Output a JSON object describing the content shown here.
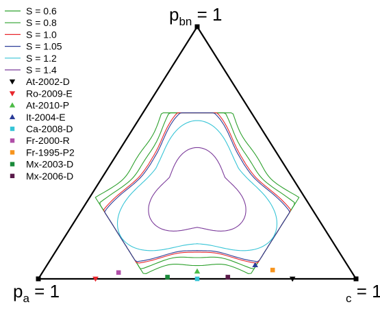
{
  "chart_data": {
    "type": "ternary",
    "vertex_labels": {
      "top": {
        "main": "p",
        "sub": "bn",
        "rest": " = 1"
      },
      "left": {
        "main": "p",
        "sub": "a",
        "rest": " = 1"
      },
      "right": {
        "main": "",
        "sub": "c",
        "rest": " = 1"
      }
    },
    "contours": [
      {
        "name": "S = 0.6",
        "color": "#2ca02c",
        "radius": 0.89,
        "p": 6
      },
      {
        "name": "S = 0.8",
        "color": "#2ca02c",
        "radius": 0.79,
        "p": 5
      },
      {
        "name": "S = 1.0",
        "color": "#e8262c",
        "radius": 0.72,
        "p": 4
      },
      {
        "name": "S = 1.05",
        "color": "#2b3c98",
        "radius": 0.7,
        "p": 4
      },
      {
        "name": "S = 1.2",
        "color": "#36c4d6",
        "radius": 0.61,
        "p": 3
      },
      {
        "name": "S = 1.4",
        "color": "#7b3a9a",
        "radius": 0.4,
        "p": 2.2
      }
    ],
    "points": [
      {
        "name": "At-2002-D",
        "marker": "triangle-down",
        "color": "#000000",
        "pbn": 0.0,
        "pa": 0.2,
        "pc": 0.8
      },
      {
        "name": "Ro-2009-E",
        "marker": "triangle-down",
        "color": "#e8262c",
        "pbn": 0.0,
        "pa": 0.82,
        "pc": 0.18
      },
      {
        "name": "At-2010-P",
        "marker": "triangle-up",
        "color": "#4cbb46",
        "pbn": 0.03,
        "pa": 0.485,
        "pc": 0.485
      },
      {
        "name": "It-2004-E",
        "marker": "triangle-up",
        "color": "#2b3c98",
        "pbn": 0.055,
        "pa": 0.29,
        "pc": 0.655
      },
      {
        "name": "Ca-2008-D",
        "marker": "square",
        "color": "#36c4d6",
        "pbn": 0.0,
        "pa": 0.5,
        "pc": 0.5
      },
      {
        "name": "Fr-2000-R",
        "marker": "square",
        "color": "#b04fa8",
        "pbn": 0.025,
        "pa": 0.735,
        "pc": 0.24
      },
      {
        "name": "Fr-1995-P2",
        "marker": "square",
        "color": "#f7941d",
        "pbn": 0.035,
        "pa": 0.245,
        "pc": 0.72
      },
      {
        "name": "Mx-2003-D",
        "marker": "square",
        "color": "#1a8a3a",
        "pbn": 0.007,
        "pa": 0.59,
        "pc": 0.403
      },
      {
        "name": "Mx-2006-D",
        "marker": "square",
        "color": "#5a1a4a",
        "pbn": 0.007,
        "pa": 0.4,
        "pc": 0.593
      }
    ]
  }
}
